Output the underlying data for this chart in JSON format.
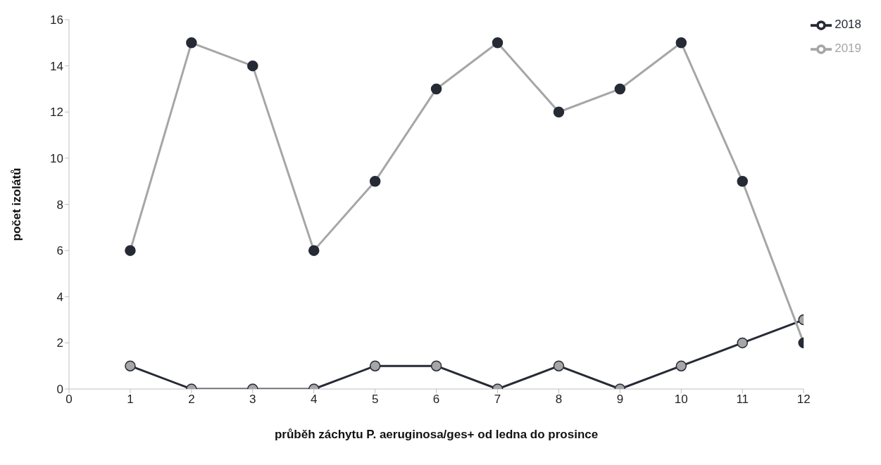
{
  "chart_data": {
    "type": "line",
    "xlabel": "průběh záchytu P. aeruginosa/ges+ od ledna do prosince",
    "ylabel": "počet izolátů",
    "x": [
      1,
      2,
      3,
      4,
      5,
      6,
      7,
      8,
      9,
      10,
      11,
      12
    ],
    "series": [
      {
        "name": "2018",
        "color": "#262a35",
        "values": [
          1,
          0,
          0,
          0,
          1,
          1,
          0,
          1,
          0,
          1,
          2,
          3
        ]
      },
      {
        "name": "2019",
        "color": "#a6a6a6",
        "values": [
          6,
          15,
          14,
          6,
          9,
          13,
          15,
          12,
          13,
          15,
          9,
          2
        ]
      }
    ],
    "xlim": [
      0,
      12
    ],
    "xticks": [
      0,
      1,
      2,
      3,
      4,
      5,
      6,
      7,
      8,
      9,
      10,
      11,
      12
    ],
    "ylim": [
      0,
      16
    ],
    "yticks": [
      0,
      2,
      4,
      6,
      8,
      10,
      12,
      14,
      16
    ],
    "grid": false,
    "legend": "top right",
    "marker": "circle",
    "line_style": "solid"
  }
}
